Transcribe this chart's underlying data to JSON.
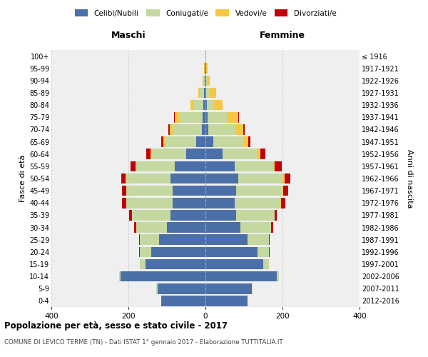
{
  "age_groups": [
    "0-4",
    "5-9",
    "10-14",
    "15-19",
    "20-24",
    "25-29",
    "30-34",
    "35-39",
    "40-44",
    "45-49",
    "50-54",
    "55-59",
    "60-64",
    "65-69",
    "70-74",
    "75-79",
    "80-84",
    "85-89",
    "90-94",
    "95-99",
    "100+"
  ],
  "birth_years": [
    "2012-2016",
    "2007-2011",
    "2002-2006",
    "1997-2001",
    "1992-1996",
    "1987-1991",
    "1982-1986",
    "1977-1981",
    "1972-1976",
    "1967-1971",
    "1962-1966",
    "1957-1961",
    "1952-1956",
    "1947-1951",
    "1942-1946",
    "1937-1941",
    "1932-1936",
    "1927-1931",
    "1922-1926",
    "1917-1921",
    "≤ 1916"
  ],
  "males": {
    "celibi": [
      115,
      125,
      220,
      155,
      140,
      120,
      100,
      90,
      85,
      85,
      90,
      80,
      50,
      25,
      10,
      8,
      5,
      3,
      2,
      1,
      0
    ],
    "coniugati": [
      0,
      2,
      5,
      15,
      30,
      50,
      80,
      100,
      120,
      120,
      115,
      100,
      90,
      80,
      75,
      60,
      25,
      12,
      4,
      1,
      0
    ],
    "vedovi": [
      0,
      0,
      0,
      0,
      0,
      0,
      0,
      0,
      0,
      0,
      2,
      2,
      3,
      5,
      8,
      12,
      8,
      4,
      2,
      1,
      0
    ],
    "divorziati": [
      0,
      0,
      0,
      0,
      2,
      3,
      5,
      8,
      12,
      12,
      12,
      12,
      10,
      5,
      3,
      2,
      0,
      0,
      0,
      0,
      0
    ]
  },
  "females": {
    "nubili": [
      110,
      120,
      185,
      150,
      135,
      110,
      90,
      80,
      75,
      80,
      85,
      75,
      45,
      20,
      8,
      5,
      3,
      2,
      1,
      1,
      0
    ],
    "coniugate": [
      0,
      2,
      5,
      15,
      30,
      55,
      80,
      100,
      120,
      120,
      115,
      100,
      90,
      80,
      70,
      50,
      20,
      10,
      3,
      1,
      0
    ],
    "vedove": [
      0,
      0,
      0,
      0,
      0,
      0,
      0,
      0,
      2,
      2,
      5,
      5,
      8,
      12,
      20,
      30,
      22,
      15,
      8,
      4,
      2
    ],
    "divorziate": [
      0,
      0,
      0,
      0,
      2,
      2,
      5,
      5,
      10,
      12,
      15,
      18,
      12,
      5,
      3,
      2,
      0,
      0,
      0,
      0,
      0
    ]
  },
  "colors": {
    "celibi_nubili": "#4B6FA8",
    "coniugati": "#C5D8A0",
    "vedovi": "#F5C842",
    "divorziati": "#C0000A"
  },
  "title": "Popolazione per età, sesso e stato civile - 2017",
  "subtitle": "COMUNE DI LEVICO TERME (TN) - Dati ISTAT 1° gennaio 2017 - Elaborazione TUTTITALIA.IT",
  "xlabel_left": "Maschi",
  "xlabel_right": "Femmine",
  "ylabel": "Fasce di età",
  "ylabel_right": "Anni di nascita",
  "xlim": 400,
  "background_color": "#efefef",
  "grid_color": "#cccccc"
}
